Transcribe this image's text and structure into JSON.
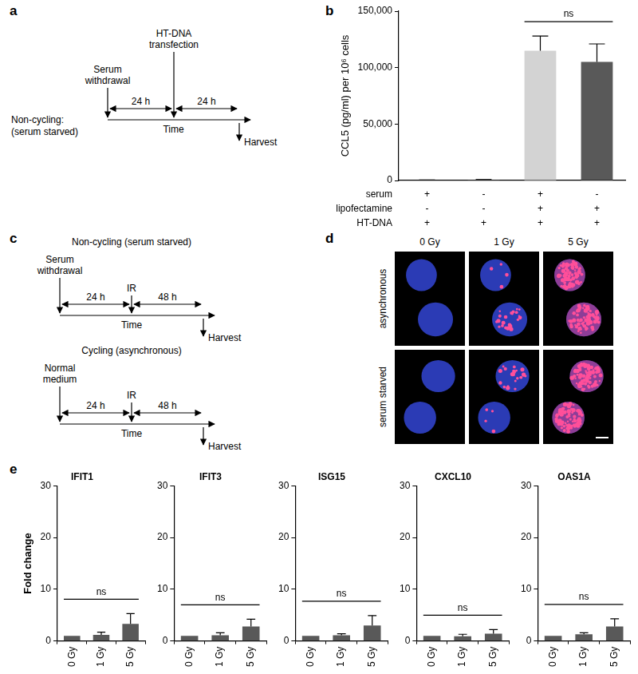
{
  "panel_labels": [
    "a",
    "b",
    "c",
    "d",
    "e"
  ],
  "diagrams": {
    "a": {
      "row_label": [
        "Non-cycling:",
        "(serum starved)"
      ],
      "events": [
        [
          "Serum",
          "withdrawal"
        ],
        [
          "HT-DNA",
          "transfection"
        ]
      ],
      "intervals": [
        "24 h",
        "24 h"
      ],
      "axis_label": "Time",
      "end_label": "Harvest"
    },
    "c": {
      "timelines": [
        {
          "title": "Non-cycling (serum starved)",
          "events": [
            [
              "Serum",
              "withdrawal"
            ],
            [
              "IR"
            ]
          ],
          "intervals": [
            "24 h",
            "48 h"
          ],
          "axis_label": "Time",
          "end_label": "Harvest"
        },
        {
          "title": "Cycling (asynchronous)",
          "events": [
            [
              "Normal",
              "medium"
            ],
            [
              "IR"
            ]
          ],
          "intervals": [
            "24 h",
            "48 h"
          ],
          "axis_label": "Time",
          "end_label": "Harvest"
        }
      ]
    }
  },
  "images": {
    "d": {
      "columns": [
        "0 Gy",
        "1 Gy",
        "5 Gy"
      ],
      "rows": [
        "asynchronous",
        "serum starved"
      ]
    }
  },
  "chart_data": [
    {
      "type": "bar",
      "y_label": "CCL5 (pg/ml) per 10⁶ cells",
      "categories": [
        null,
        null,
        null,
        null
      ],
      "values": [
        300,
        600,
        115000,
        105000
      ],
      "errors": [
        100,
        300,
        13000,
        16000
      ],
      "colors": [
        "#d3d3d3",
        "#595959",
        "#d3d3d3",
        "#595959"
      ],
      "ylim": [
        0,
        150000
      ],
      "yticks": [
        0,
        {
          "value": 50000,
          "label": "50,000"
        },
        {
          "value": 100000,
          "label": "100,000"
        },
        {
          "value": 150000,
          "label": "150,000"
        }
      ],
      "grid": false,
      "tick_labels": "y",
      "conditions": [
        {
          "name": "serum",
          "values": [
            "+",
            "-",
            "+",
            "-"
          ]
        },
        {
          "name": "lipofectamine",
          "values": [
            "-",
            "-",
            "+",
            "+"
          ]
        },
        {
          "name": "HT-DNA",
          "values": [
            "+",
            "+",
            "+",
            "+"
          ]
        }
      ],
      "annotations": [
        {
          "text": "ns",
          "between": [
            2,
            3
          ]
        }
      ]
    },
    {
      "type": "bar",
      "title": "IFIT1",
      "y_label": "Fold change",
      "categories": [
        "0 Gy",
        "1 Gy",
        "5 Gy"
      ],
      "values": [
        1,
        1.2,
        3.3
      ],
      "errors": [
        0,
        0.5,
        2.0
      ],
      "color": "#595959",
      "ylim": [
        0,
        30
      ],
      "yticks": [
        0,
        10,
        20,
        30
      ],
      "grid": false,
      "annotations": [
        {
          "text": "ns",
          "between": [
            0,
            2
          ]
        }
      ]
    },
    {
      "type": "bar",
      "title": "IFIT3",
      "categories": [
        "0 Gy",
        "1 Gy",
        "5 Gy"
      ],
      "values": [
        1,
        1.1,
        2.8
      ],
      "errors": [
        0,
        0.5,
        1.4
      ],
      "color": "#595959",
      "ylim": [
        0,
        30
      ],
      "yticks": [
        0,
        10,
        20,
        30
      ],
      "grid": false,
      "annotations": [
        {
          "text": "ns",
          "between": [
            0,
            2
          ]
        }
      ]
    },
    {
      "type": "bar",
      "title": "ISG15",
      "categories": [
        "0 Gy",
        "1 Gy",
        "5 Gy"
      ],
      "values": [
        1,
        1.1,
        3.0
      ],
      "errors": [
        0,
        0.3,
        1.9
      ],
      "color": "#595959",
      "ylim": [
        0,
        30
      ],
      "yticks": [
        0,
        10,
        20,
        30
      ],
      "grid": false,
      "annotations": [
        {
          "text": "ns",
          "between": [
            0,
            2
          ]
        }
      ]
    },
    {
      "type": "bar",
      "title": "CXCL10",
      "categories": [
        "0 Gy",
        "1 Gy",
        "5 Gy"
      ],
      "values": [
        1,
        0.9,
        1.4
      ],
      "errors": [
        0,
        0.4,
        0.8
      ],
      "color": "#595959",
      "ylim": [
        0,
        30
      ],
      "yticks": [
        0,
        10,
        20,
        30
      ],
      "grid": false,
      "annotations": [
        {
          "text": "ns",
          "between": [
            0,
            2
          ]
        }
      ]
    },
    {
      "type": "bar",
      "title": "OAS1A",
      "categories": [
        "0 Gy",
        "1 Gy",
        "5 Gy"
      ],
      "values": [
        1,
        1.3,
        2.8
      ],
      "errors": [
        0,
        0.3,
        1.5
      ],
      "color": "#595959",
      "ylim": [
        0,
        30
      ],
      "yticks": [
        0,
        10,
        20,
        30
      ],
      "grid": false,
      "annotations": [
        {
          "text": "ns",
          "between": [
            0,
            2
          ]
        }
      ]
    }
  ]
}
